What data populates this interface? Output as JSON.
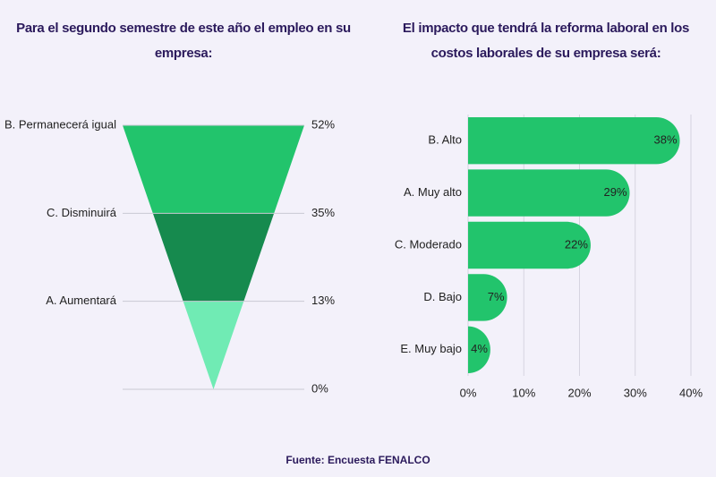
{
  "charts": [
    {
      "type": "funnel",
      "title": "Para el segundo semestre de este año el empleo en su empresa:",
      "categories": [
        "B. Permanecerá igual",
        "C. Disminuirá",
        "A. Aumentará"
      ],
      "values": [
        52,
        35,
        13
      ],
      "value_labels": [
        "52%",
        "35%",
        "13%"
      ],
      "colors": [
        "#22c46c",
        "#168a4e",
        "#70ebb4"
      ],
      "end_tick": {
        "value": 0,
        "label": "0%"
      }
    },
    {
      "type": "hbar",
      "title": "El impacto que tendrá la reforma laboral en los costos laborales de su empresa será:",
      "categories": [
        "B. Alto",
        "A. Muy alto",
        "C. Moderado",
        "D. Bajo",
        "E. Muy bajo"
      ],
      "values": [
        38,
        29,
        22,
        7,
        4
      ],
      "value_labels": [
        "38%",
        "29%",
        "22%",
        "7%",
        "4%"
      ],
      "color": "#22c46c",
      "xlim": [
        0,
        40
      ],
      "xticks": [
        {
          "value": 0,
          "label": "0%"
        },
        {
          "value": 10,
          "label": "10%"
        },
        {
          "value": 20,
          "label": "20%"
        },
        {
          "value": 30,
          "label": "30%"
        },
        {
          "value": 40,
          "label": "40%"
        }
      ],
      "grid": true
    }
  ],
  "source": "Fuente: Encuesta FENALCO"
}
